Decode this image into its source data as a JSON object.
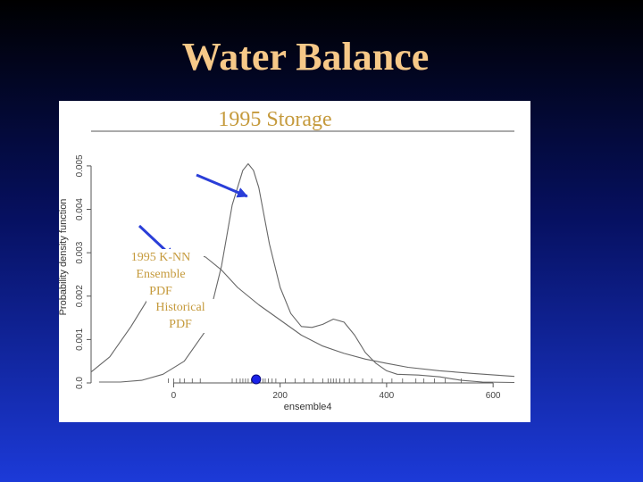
{
  "slide": {
    "title": "Water Balance"
  },
  "chart_data": {
    "type": "line",
    "title": "1995 Storage",
    "xlabel": "ensemble4",
    "ylabel": "Probability density function",
    "xlim": [
      -155,
      640
    ],
    "ylim": [
      0,
      0.0058
    ],
    "xticks": [
      0,
      200,
      400,
      600
    ],
    "yticks": [
      0.0,
      0.001,
      0.002,
      0.003,
      0.004,
      0.005
    ],
    "ytick_labels": [
      "0.0",
      "0.001",
      "0.002",
      "0.003",
      "0.004",
      "0.005"
    ],
    "series": [
      {
        "name": "1995 K-NN Ensemble PDF",
        "x": [
          -140,
          -100,
          -60,
          -20,
          20,
          60,
          90,
          110,
          130,
          140,
          150,
          160,
          180,
          200,
          220,
          240,
          260,
          280,
          300,
          320,
          340,
          360,
          380,
          400,
          420,
          460,
          500,
          540,
          580,
          640
        ],
        "y": [
          2e-05,
          2e-05,
          6e-05,
          0.0002,
          0.0005,
          0.0012,
          0.0027,
          0.0041,
          0.0049,
          0.00505,
          0.0049,
          0.0045,
          0.0032,
          0.0022,
          0.0016,
          0.0013,
          0.00128,
          0.00135,
          0.00147,
          0.0014,
          0.0011,
          0.0007,
          0.00045,
          0.00028,
          0.0002,
          0.00018,
          0.00014,
          6e-05,
          2e-05,
          1e-05
        ]
      },
      {
        "name": "Historical PDF",
        "x": [
          -155,
          -120,
          -80,
          -40,
          0,
          30,
          60,
          90,
          120,
          160,
          200,
          240,
          280,
          320,
          360,
          400,
          440,
          500,
          560,
          640
        ],
        "y": [
          0.00025,
          0.0006,
          0.0013,
          0.0021,
          0.0028,
          0.003,
          0.0029,
          0.0026,
          0.0022,
          0.0018,
          0.00145,
          0.0011,
          0.00085,
          0.00068,
          0.00055,
          0.00045,
          0.00036,
          0.00028,
          0.00022,
          0.00015
        ]
      }
    ],
    "rug": [
      -10,
      0,
      12,
      20,
      35,
      50,
      110,
      118,
      125,
      130,
      135,
      140,
      146,
      150,
      155,
      158,
      162,
      168,
      172,
      178,
      185,
      192,
      210,
      228,
      245,
      262,
      280,
      290,
      295,
      300,
      305,
      312,
      320,
      330,
      340,
      355,
      372,
      392,
      410,
      430,
      455,
      470,
      490,
      510,
      540
    ],
    "observed_value": 155,
    "annotations": [
      {
        "label_lines": [
          "1995 K-NN",
          "Ensemble",
          "PDF"
        ],
        "points_to_series": "1995 K-NN Ensemble PDF"
      },
      {
        "label_lines": [
          "Historical",
          "PDF"
        ],
        "points_to_series": "Historical PDF"
      }
    ],
    "grid": false,
    "colors": {
      "curve": "#666666",
      "axis": "#555555",
      "rug": "#555555",
      "marker": "#1a22e8",
      "annotation": "#c59a3c",
      "arrow": "#2a3ed8"
    }
  }
}
